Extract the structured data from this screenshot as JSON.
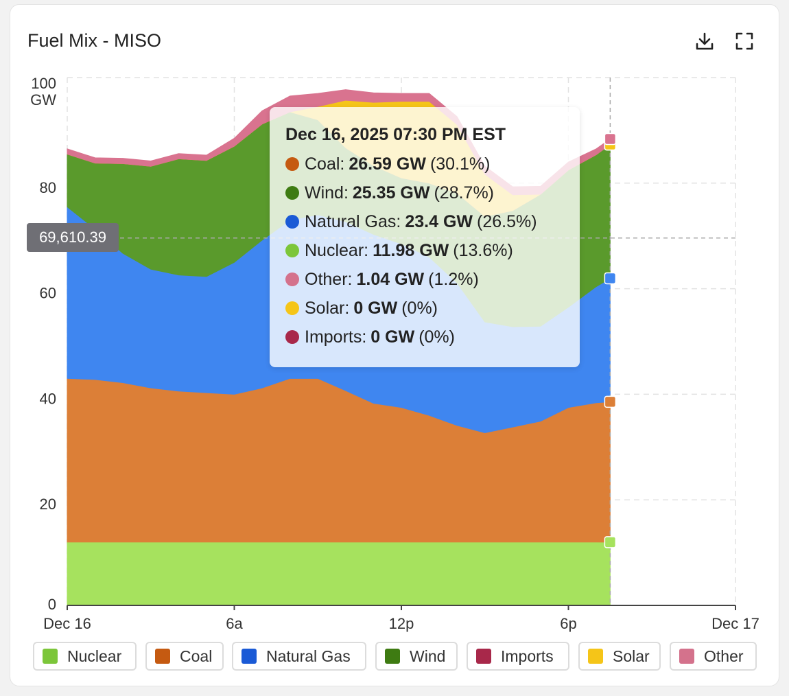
{
  "title": "Fuel Mix - MISO",
  "icons": {
    "download": "download-icon",
    "fullscreen": "fullscreen-icon"
  },
  "colors": {
    "Nuclear": "#a6e25e",
    "Coal": "#dc7f37",
    "Natural Gas": "#3f86f0",
    "Wind": "#5a9a2c",
    "Imports": "#a8284a",
    "Solar": "#f5c518",
    "Other": "#d9738f"
  },
  "crosshair": {
    "label": "69,610.39",
    "value_mw": 69610.39
  },
  "tooltip": {
    "title": "Dec 16, 2025 07:30 PM EST",
    "rows": [
      {
        "name": "Coal",
        "label": "Coal:",
        "value": "26.59 GW",
        "pct": "(30.1%)",
        "color": "#c55a11"
      },
      {
        "name": "Wind",
        "label": "Wind:",
        "value": "25.35 GW",
        "pct": "(28.7%)",
        "color": "#3e7b12"
      },
      {
        "name": "Natural Gas",
        "label": "Natural Gas:",
        "value": "23.4 GW",
        "pct": "(26.5%)",
        "color": "#1a5ad6"
      },
      {
        "name": "Nuclear",
        "label": "Nuclear:",
        "value": "11.98 GW",
        "pct": "(13.6%)",
        "color": "#7cc63a"
      },
      {
        "name": "Other",
        "label": "Other:",
        "value": "1.04 GW",
        "pct": "(1.2%)",
        "color": "#d4728c"
      },
      {
        "name": "Solar",
        "label": "Solar:",
        "value": "0 GW",
        "pct": "(0%)",
        "color": "#f5c518"
      },
      {
        "name": "Imports",
        "label": "Imports:",
        "value": "0 GW",
        "pct": "(0%)",
        "color": "#a8284a"
      }
    ]
  },
  "legend": [
    {
      "label": "Nuclear",
      "color": "#7cc63a"
    },
    {
      "label": "Coal",
      "color": "#c55a11"
    },
    {
      "label": "Natural Gas",
      "color": "#1a5ad6"
    },
    {
      "label": "Wind",
      "color": "#3e7b12"
    },
    {
      "label": "Imports",
      "color": "#a8284a"
    },
    {
      "label": "Solar",
      "color": "#f5c518"
    },
    {
      "label": "Other",
      "color": "#d4728c"
    }
  ],
  "chart_data": {
    "type": "area",
    "stacked": true,
    "ylabel": "GW",
    "ylim": [
      0,
      100
    ],
    "yticks": [
      0,
      20,
      40,
      60,
      80,
      100
    ],
    "ytick_labels": [
      "0",
      "20",
      "40",
      "60",
      "80",
      "100"
    ],
    "xlim_hours": [
      0,
      24
    ],
    "xticks": [
      0,
      6,
      12,
      18,
      24
    ],
    "xtick_labels": [
      "Dec 16",
      "6a",
      "12p",
      "6p",
      "Dec 17"
    ],
    "x_hours": [
      0,
      1,
      2,
      3,
      4,
      5,
      6,
      7,
      8,
      9,
      10,
      11,
      12,
      13,
      14,
      15,
      16,
      17,
      18,
      19,
      19.5
    ],
    "series": [
      {
        "name": "Nuclear",
        "values": [
          12.0,
          12.0,
          12.0,
          12.0,
          12.0,
          12.0,
          12.0,
          12.0,
          12.0,
          12.0,
          12.0,
          12.0,
          12.0,
          12.0,
          12.0,
          12.0,
          12.0,
          12.0,
          12.0,
          12.0,
          11.98
        ]
      },
      {
        "name": "Coal",
        "values": [
          31.0,
          30.8,
          30.2,
          29.2,
          28.6,
          28.3,
          28.0,
          29.2,
          31.0,
          31.0,
          28.7,
          26.3,
          25.5,
          24.0,
          22.1,
          20.7,
          21.8,
          22.9,
          25.5,
          26.4,
          26.59
        ]
      },
      {
        "name": "Natural Gas",
        "values": [
          32.5,
          28.5,
          24.5,
          22.5,
          22.0,
          22.0,
          25.0,
          28.0,
          30.0,
          31.0,
          32.0,
          32.0,
          31.0,
          30.0,
          27.0,
          21.0,
          19.0,
          18.0,
          19.0,
          22.0,
          23.4
        ]
      },
      {
        "name": "Wind",
        "values": [
          10.0,
          12.5,
          17.0,
          19.5,
          22.0,
          22.0,
          22.0,
          22.0,
          20.5,
          18.0,
          14.0,
          13.0,
          12.5,
          14.0,
          17.0,
          20.0,
          22.0,
          25.0,
          26.0,
          25.0,
          25.35
        ]
      },
      {
        "name": "Imports",
        "values": [
          0,
          0,
          0,
          0,
          0,
          0,
          0,
          0,
          0,
          0,
          0,
          0,
          0,
          0,
          0,
          0,
          0,
          0,
          0,
          0,
          0
        ]
      },
      {
        "name": "Solar",
        "values": [
          0,
          0,
          0,
          0,
          0,
          0,
          0,
          0,
          0,
          2.5,
          9.0,
          12.0,
          14.5,
          15.5,
          13.0,
          8.0,
          3.0,
          0,
          0,
          0,
          0
        ]
      },
      {
        "name": "Other",
        "values": [
          1.0,
          1.0,
          1.0,
          1.0,
          1.0,
          1.0,
          1.5,
          2.5,
          3.0,
          2.5,
          2.0,
          1.8,
          1.5,
          1.5,
          1.5,
          1.5,
          1.5,
          1.5,
          1.5,
          1.1,
          1.04
        ]
      }
    ],
    "legend_position": "bottom",
    "grid": true
  }
}
